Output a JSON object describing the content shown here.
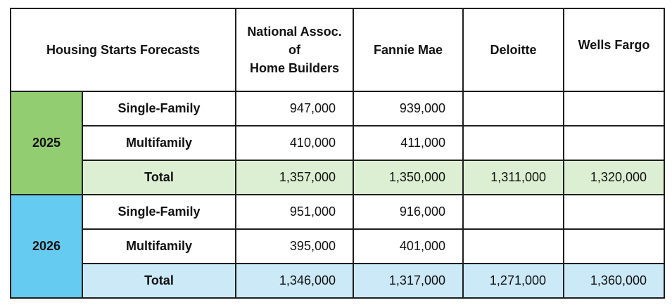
{
  "title": "Housing Starts Forecasts",
  "columns": [
    {
      "lines": [
        "National Assoc.",
        "of",
        "Home Builders"
      ]
    },
    {
      "lines": [
        "Fannie Mae"
      ]
    },
    {
      "lines": [
        "Deloitte"
      ]
    },
    {
      "lines": [
        "Wells Fargo"
      ]
    }
  ],
  "colors": {
    "y2025_dark": "#92cd71",
    "y2025_light": "#dcefd3",
    "y2026_dark": "#66cbf1",
    "y2026_light": "#cbe9f7",
    "border": "#1e1e1e"
  },
  "years": [
    {
      "label": "2025",
      "rows": [
        {
          "label": "Single-Family",
          "values": [
            "947,000",
            "939,000",
            "",
            ""
          ]
        },
        {
          "label": "Multifamily",
          "values": [
            "410,000",
            "411,000",
            "",
            ""
          ]
        },
        {
          "label": "Total",
          "values": [
            "1,357,000",
            "1,350,000",
            "1,311,000",
            "1,320,000"
          ]
        }
      ]
    },
    {
      "label": "2026",
      "rows": [
        {
          "label": "Single-Family",
          "values": [
            "951,000",
            "916,000",
            "",
            ""
          ]
        },
        {
          "label": "Multifamily",
          "values": [
            "395,000",
            "401,000",
            "",
            ""
          ]
        },
        {
          "label": "Total",
          "values": [
            "1,346,000",
            "1,317,000",
            "1,271,000",
            "1,360,000"
          ]
        }
      ]
    }
  ]
}
